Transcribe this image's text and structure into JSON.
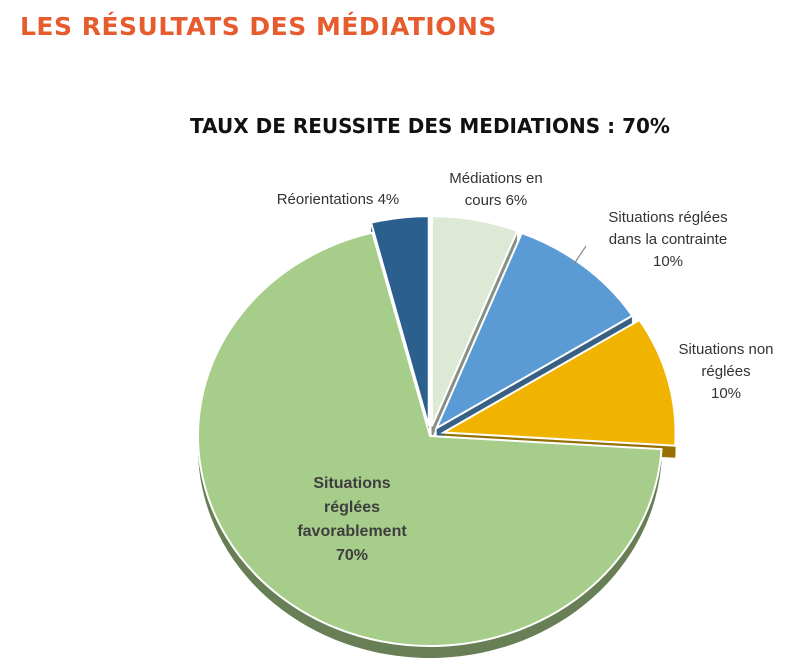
{
  "page": {
    "title": "LES RÉSULTATS DES MÉDIATIONS"
  },
  "chart_data": {
    "type": "pie",
    "title": "TAUX DE REUSSITE DES MEDIATIONS : 70%",
    "slices": [
      {
        "name": "Médiations en cours",
        "label_lines": [
          "Médiations en",
          "cours 6%"
        ],
        "value": 6,
        "color": "#dde8d5"
      },
      {
        "name": "Situations réglées dans la contrainte",
        "label_lines": [
          "Situations réglées",
          "dans la contrainte",
          "10%"
        ],
        "value": 10,
        "color": "#5b9bd5"
      },
      {
        "name": "Situations non réglées",
        "label_lines": [
          "Situations non",
          "réglées",
          "10%"
        ],
        "value": 10,
        "color": "#f0b400"
      },
      {
        "name": "Situations réglées favorablement",
        "label_lines": [
          "Situations",
          "réglées",
          "favorablement",
          "70%"
        ],
        "value": 70,
        "color": "#a7cd8a"
      },
      {
        "name": "Réorientations",
        "label_lines": [
          "Réorientations 4%"
        ],
        "value": 4,
        "color": "#2b5f8e"
      }
    ]
  }
}
